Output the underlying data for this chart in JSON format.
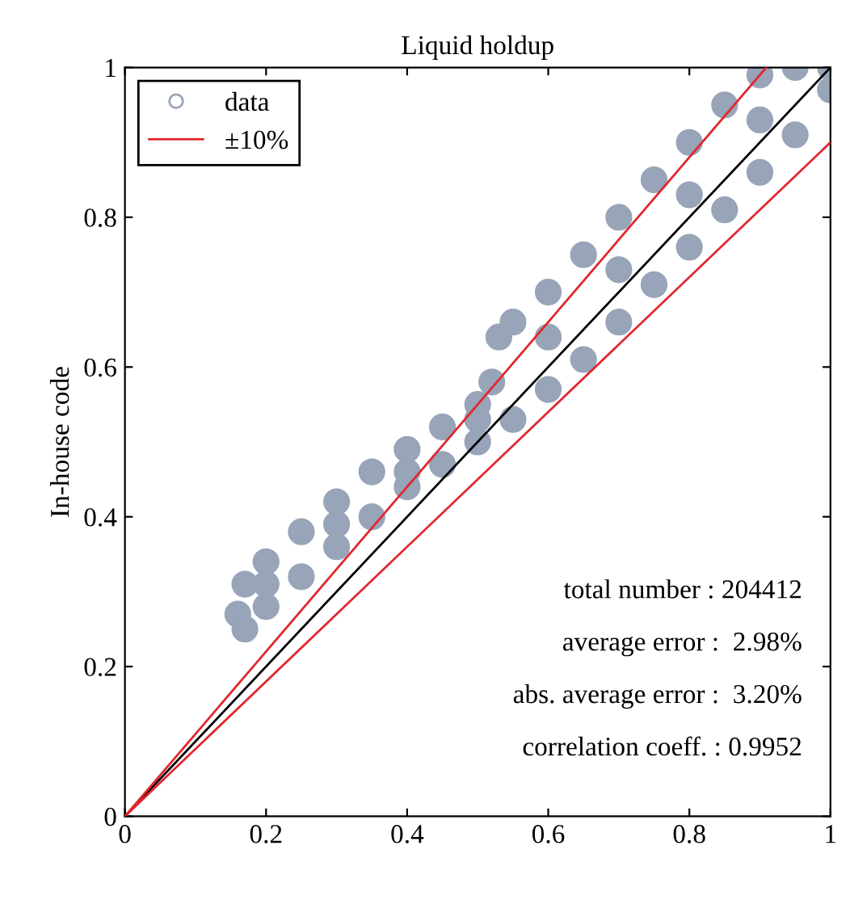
{
  "chart_data": {
    "type": "scatter",
    "title": "Liquid holdup",
    "ylabel": "In-house code",
    "xlim": [
      0,
      1
    ],
    "ylim": [
      0,
      1
    ],
    "xticks": [
      0,
      0.2,
      0.4,
      0.6,
      0.8,
      1
    ],
    "yticks": [
      0,
      0.2,
      0.4,
      0.6,
      0.8,
      1
    ],
    "grid": false,
    "legend": "top left",
    "series": [
      {
        "name": "data",
        "marker": "circle",
        "color": "#98a4b8",
        "x": [
          0.16,
          0.17,
          0.2,
          0.25,
          0.3,
          0.35,
          0.4,
          0.45,
          0.5,
          0.52,
          0.53,
          0.55,
          0.6,
          0.65,
          0.7,
          0.75,
          0.8,
          0.85,
          0.9,
          0.95,
          1.0,
          0.17,
          0.2,
          0.25,
          0.3,
          0.35,
          0.4,
          0.45,
          0.5,
          0.55,
          0.6,
          0.65,
          0.7,
          0.75,
          0.8,
          0.85,
          0.9,
          0.95,
          1.0,
          0.2,
          0.3,
          0.4,
          0.5,
          0.6,
          0.7,
          0.8,
          0.9
        ],
        "values": [
          0.27,
          0.31,
          0.34,
          0.38,
          0.42,
          0.46,
          0.49,
          0.52,
          0.55,
          0.58,
          0.64,
          0.66,
          0.7,
          0.75,
          0.8,
          0.85,
          0.9,
          0.95,
          0.99,
          1.0,
          1.0,
          0.25,
          0.28,
          0.32,
          0.36,
          0.4,
          0.44,
          0.47,
          0.5,
          0.53,
          0.57,
          0.61,
          0.66,
          0.71,
          0.76,
          0.81,
          0.86,
          0.91,
          0.97,
          0.31,
          0.39,
          0.46,
          0.53,
          0.64,
          0.73,
          0.83,
          0.93
        ]
      },
      {
        "type": "line",
        "marker": "none",
        "color": "#000000",
        "x": [
          0,
          1
        ],
        "values": [
          0,
          1
        ]
      },
      {
        "name": "±10%",
        "type": "line",
        "marker": "none",
        "color": "#e0282e",
        "x": [
          0,
          0.909
        ],
        "values": [
          0,
          1
        ]
      },
      {
        "type": "line",
        "marker": "none",
        "color": "#e0282e",
        "x": [
          0,
          1
        ],
        "values": [
          0,
          0.9
        ]
      }
    ],
    "annotations": [
      "total number : 204412",
      "average error :  2.98%",
      "abs. average error :  3.20%",
      "correlation coeff. : 0.9952"
    ]
  }
}
